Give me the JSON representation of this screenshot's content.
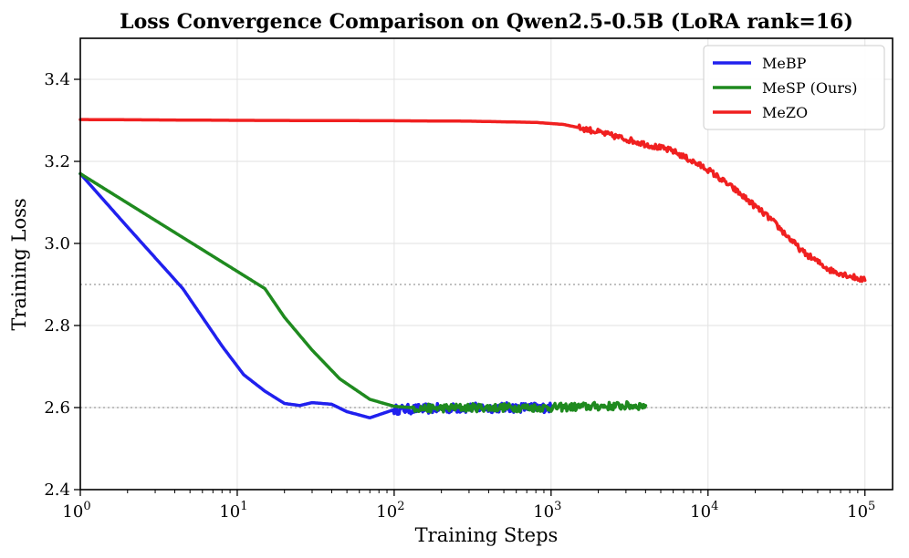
{
  "chart_data": {
    "type": "line",
    "title": "Loss Convergence Comparison on Qwen2.5-0.5B (LoRA rank=16)",
    "xlabel": "Training Steps",
    "ylabel": "Training Loss",
    "xscale": "log",
    "xlim": [
      1,
      150000
    ],
    "ylim": [
      2.4,
      3.5
    ],
    "x_ticks": [
      {
        "value": 1,
        "base": "10",
        "exp": "0"
      },
      {
        "value": 10,
        "base": "10",
        "exp": "1"
      },
      {
        "value": 100,
        "base": "10",
        "exp": "2"
      },
      {
        "value": 1000,
        "base": "10",
        "exp": "3"
      },
      {
        "value": 10000,
        "base": "10",
        "exp": "4"
      },
      {
        "value": 100000,
        "base": "10",
        "exp": "5"
      }
    ],
    "y_ticks": [
      {
        "value": 2.4,
        "label": "2.4"
      },
      {
        "value": 2.6,
        "label": "2.6"
      },
      {
        "value": 2.8,
        "label": "2.8"
      },
      {
        "value": 3.0,
        "label": "3.0"
      },
      {
        "value": 3.2,
        "label": "3.2"
      },
      {
        "value": 3.4,
        "label": "3.4"
      }
    ],
    "reference_lines": [
      2.6,
      2.9
    ],
    "grid": true,
    "legend_position": "top-right",
    "series": [
      {
        "name": "MeBP",
        "color": "#2020ee",
        "noise": 0.012,
        "noise_from": 100,
        "x": [
          1,
          2,
          4.5,
          8,
          11,
          15,
          20,
          25,
          30,
          40,
          50,
          70,
          100,
          200,
          500,
          1000
        ],
        "y": [
          3.17,
          3.04,
          2.89,
          2.75,
          2.68,
          2.64,
          2.61,
          2.605,
          2.612,
          2.608,
          2.59,
          2.575,
          2.595,
          2.598,
          2.6,
          2.6
        ]
      },
      {
        "name": "MeSP (Ours)",
        "color": "#1f8a1f",
        "noise": 0.01,
        "noise_from": 130,
        "x": [
          1,
          15,
          20,
          30,
          45,
          70,
          100,
          150,
          300,
          1000,
          2000,
          4000
        ],
        "y": [
          3.17,
          2.89,
          2.82,
          2.74,
          2.67,
          2.62,
          2.603,
          2.598,
          2.6,
          2.6,
          2.603,
          2.605
        ]
      },
      {
        "name": "MeZO",
        "color": "#f02020",
        "noise": 0.007,
        "noise_from": 1500,
        "x": [
          1,
          10,
          100,
          300,
          800,
          1200,
          1700,
          2500,
          4000,
          6000,
          10000,
          15000,
          25000,
          40000,
          60000,
          100000
        ],
        "y": [
          3.302,
          3.3,
          3.299,
          3.298,
          3.295,
          3.29,
          3.278,
          3.262,
          3.242,
          3.225,
          3.18,
          3.13,
          3.06,
          2.98,
          2.935,
          2.91
        ]
      }
    ]
  }
}
